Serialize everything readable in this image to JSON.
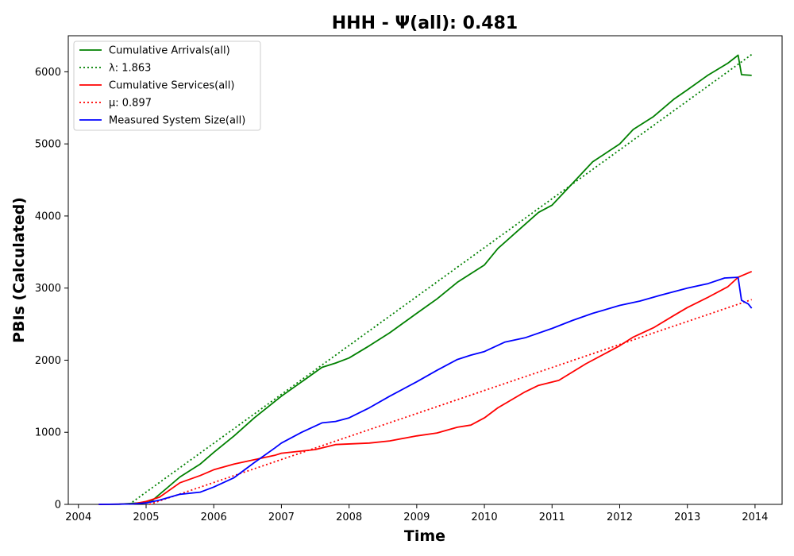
{
  "chart_data": {
    "type": "line",
    "title": "HHH -  Ψ(all): 0.481",
    "xlabel": "Time",
    "ylabel": "PBIs (Calculated)",
    "xlim": [
      2003.85,
      2014.4
    ],
    "ylim": [
      0,
      6500
    ],
    "x_ticks": [
      2004,
      2005,
      2006,
      2007,
      2008,
      2009,
      2010,
      2011,
      2012,
      2013,
      2014
    ],
    "y_ticks": [
      0,
      1000,
      2000,
      3000,
      4000,
      5000,
      6000
    ],
    "legend_position": "top-left",
    "series": [
      {
        "name": "Cumulative Arrivals(all)",
        "style": "solid",
        "color": "#008000",
        "points": [
          [
            2004.3,
            0
          ],
          [
            2004.6,
            2
          ],
          [
            2004.9,
            20
          ],
          [
            2005.1,
            60
          ],
          [
            2005.3,
            220
          ],
          [
            2005.5,
            380
          ],
          [
            2005.8,
            560
          ],
          [
            2006.0,
            720
          ],
          [
            2006.3,
            950
          ],
          [
            2006.6,
            1200
          ],
          [
            2007.0,
            1500
          ],
          [
            2007.3,
            1700
          ],
          [
            2007.6,
            1900
          ],
          [
            2007.8,
            1960
          ],
          [
            2008.0,
            2030
          ],
          [
            2008.3,
            2200
          ],
          [
            2008.6,
            2380
          ],
          [
            2009.0,
            2650
          ],
          [
            2009.3,
            2850
          ],
          [
            2009.6,
            3080
          ],
          [
            2010.0,
            3320
          ],
          [
            2010.2,
            3550
          ],
          [
            2010.5,
            3800
          ],
          [
            2010.8,
            4050
          ],
          [
            2011.0,
            4150
          ],
          [
            2011.3,
            4450
          ],
          [
            2011.6,
            4750
          ],
          [
            2012.0,
            5000
          ],
          [
            2012.2,
            5200
          ],
          [
            2012.5,
            5380
          ],
          [
            2012.8,
            5620
          ],
          [
            2013.0,
            5750
          ],
          [
            2013.3,
            5950
          ],
          [
            2013.6,
            6120
          ],
          [
            2013.75,
            6230
          ],
          [
            2013.8,
            5960
          ],
          [
            2013.95,
            5950
          ]
        ]
      },
      {
        "name": "λ: 1.863",
        "style": "dotted",
        "color": "#008000",
        "points": [
          [
            2004.75,
            0
          ],
          [
            2013.95,
            6240
          ]
        ]
      },
      {
        "name": "Cumulative Services(all)",
        "style": "solid",
        "color": "#ff0000",
        "points": [
          [
            2004.3,
            0
          ],
          [
            2004.8,
            5
          ],
          [
            2005.0,
            40
          ],
          [
            2005.2,
            100
          ],
          [
            2005.5,
            300
          ],
          [
            2005.8,
            400
          ],
          [
            2006.0,
            480
          ],
          [
            2006.3,
            560
          ],
          [
            2006.6,
            620
          ],
          [
            2006.9,
            680
          ],
          [
            2007.0,
            710
          ],
          [
            2007.5,
            760
          ],
          [
            2007.8,
            830
          ],
          [
            2008.3,
            850
          ],
          [
            2008.6,
            880
          ],
          [
            2009.0,
            950
          ],
          [
            2009.3,
            990
          ],
          [
            2009.6,
            1070
          ],
          [
            2009.8,
            1100
          ],
          [
            2010.0,
            1200
          ],
          [
            2010.2,
            1340
          ],
          [
            2010.6,
            1560
          ],
          [
            2010.8,
            1650
          ],
          [
            2011.1,
            1720
          ],
          [
            2011.5,
            1950
          ],
          [
            2011.8,
            2100
          ],
          [
            2012.0,
            2200
          ],
          [
            2012.2,
            2320
          ],
          [
            2012.5,
            2450
          ],
          [
            2012.8,
            2620
          ],
          [
            2013.0,
            2730
          ],
          [
            2013.3,
            2870
          ],
          [
            2013.6,
            3020
          ],
          [
            2013.75,
            3150
          ],
          [
            2013.95,
            3230
          ]
        ]
      },
      {
        "name": "μ: 0.897",
        "style": "dotted",
        "color": "#ff0000",
        "points": [
          [
            2005.05,
            0
          ],
          [
            2013.95,
            2840
          ]
        ]
      },
      {
        "name": "Measured System Size(all)",
        "style": "solid",
        "color": "#0000ff",
        "points": [
          [
            2004.3,
            0
          ],
          [
            2004.8,
            5
          ],
          [
            2005.0,
            20
          ],
          [
            2005.2,
            60
          ],
          [
            2005.5,
            140
          ],
          [
            2005.8,
            170
          ],
          [
            2006.0,
            240
          ],
          [
            2006.3,
            370
          ],
          [
            2006.6,
            580
          ],
          [
            2006.9,
            780
          ],
          [
            2007.0,
            850
          ],
          [
            2007.3,
            1000
          ],
          [
            2007.6,
            1130
          ],
          [
            2007.8,
            1150
          ],
          [
            2008.0,
            1200
          ],
          [
            2008.3,
            1340
          ],
          [
            2008.6,
            1500
          ],
          [
            2009.0,
            1700
          ],
          [
            2009.3,
            1860
          ],
          [
            2009.6,
            2010
          ],
          [
            2009.8,
            2070
          ],
          [
            2010.0,
            2120
          ],
          [
            2010.3,
            2250
          ],
          [
            2010.6,
            2310
          ],
          [
            2011.0,
            2440
          ],
          [
            2011.3,
            2550
          ],
          [
            2011.6,
            2650
          ],
          [
            2012.0,
            2760
          ],
          [
            2012.3,
            2820
          ],
          [
            2012.6,
            2900
          ],
          [
            2013.0,
            3000
          ],
          [
            2013.3,
            3060
          ],
          [
            2013.55,
            3140
          ],
          [
            2013.75,
            3150
          ],
          [
            2013.8,
            2830
          ],
          [
            2013.9,
            2780
          ],
          [
            2013.95,
            2720
          ]
        ]
      }
    ]
  }
}
